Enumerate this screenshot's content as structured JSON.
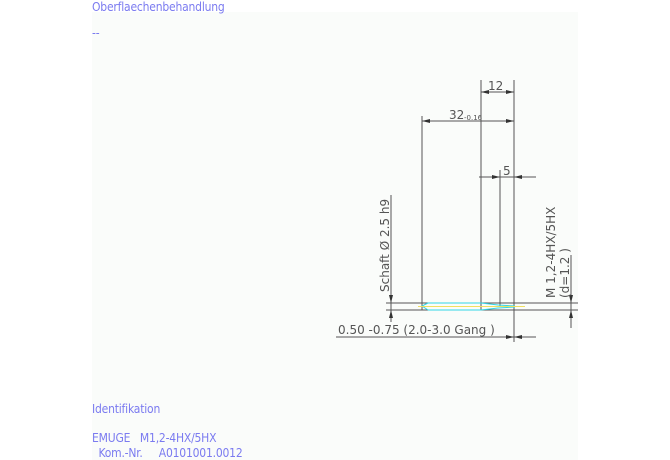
{
  "header": {
    "surface_label": "Oberflaechenbehandlung",
    "surface_value": "--"
  },
  "drawing": {
    "dim_thread_length": "12",
    "dim_total_length": "32",
    "dim_total_tolerance": "-0.16",
    "dim_chamfer": "5",
    "shank_label": "Schaft Ø 2.5  h9",
    "thread_label": "M 1,2-4HX/5HX",
    "thread_diameter": "(d=1.2 )",
    "chamfer_note": "0.50 -0.75 (2.0-3.0 Gang  )",
    "colors": {
      "lines": "#555555",
      "tool": "#33d6e6",
      "axis": "#f0e060",
      "text": "#7b7bf0"
    }
  },
  "identification": {
    "heading": "Identifikation",
    "line1": "EMUGE   M1,2-4HX/5HX",
    "line2": "  Kom.-Nr.     A0101001.0012"
  }
}
